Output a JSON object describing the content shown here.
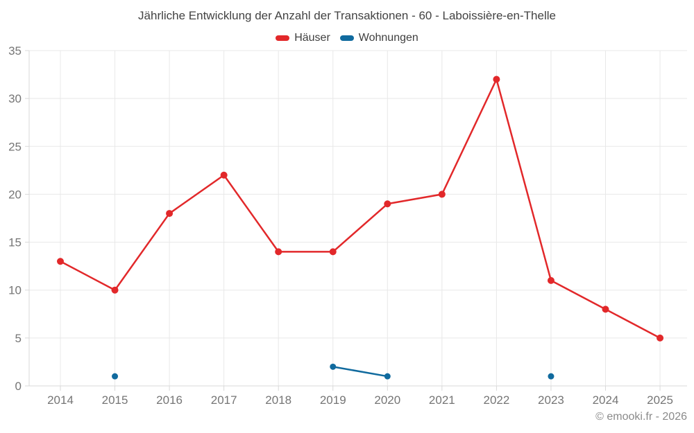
{
  "title": "Jährliche Entwicklung der Anzahl der Transaktionen - 60 - Laboissière-en-Thelle",
  "footer": "© emooki.fr - 2026",
  "colors": {
    "background": "#ffffff",
    "grid": "#e8e8e8",
    "axis": "#d9d9d9",
    "tick_label": "#757575",
    "title_text": "#424242",
    "footer_text": "#8a8a8a",
    "haeuser_red": "#e2282a",
    "wohnungen_blue": "#106a9e"
  },
  "chart_data": {
    "type": "line",
    "title": "Jährliche Entwicklung der Anzahl der Transaktionen - 60 - Laboissière-en-Thelle",
    "categories": [
      "2014",
      "2015",
      "2016",
      "2017",
      "2018",
      "2019",
      "2020",
      "2021",
      "2022",
      "2023",
      "2024",
      "2025"
    ],
    "series": [
      {
        "name": "Häuser",
        "color": "#e2282a",
        "values": [
          13,
          10,
          18,
          22,
          14,
          14,
          19,
          20,
          32,
          11,
          8,
          5
        ]
      },
      {
        "name": "Wohnungen",
        "color": "#106a9e",
        "values": [
          null,
          1,
          null,
          null,
          null,
          2,
          1,
          null,
          null,
          1,
          null,
          null
        ]
      }
    ],
    "xlabel": "",
    "ylabel": "",
    "ylim": [
      0,
      35
    ],
    "ytick_step": 5,
    "yticks": [
      0,
      5,
      10,
      15,
      20,
      25,
      30,
      35
    ],
    "grid": true,
    "legend_position": "top"
  }
}
